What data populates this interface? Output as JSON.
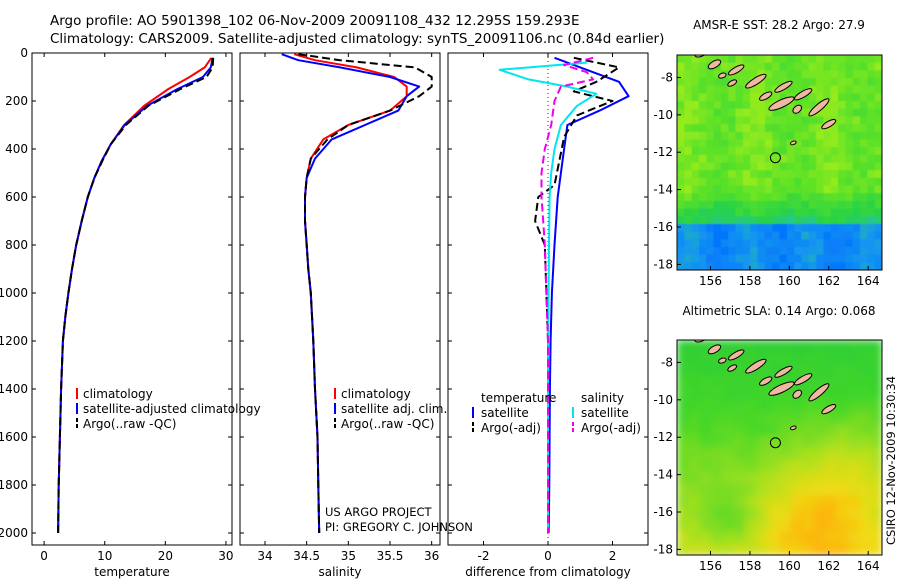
{
  "header": {
    "line1": "Argo profile: AO 5901398_102 06-Nov-2009 20091108_432 12.295S 159.293E",
    "line2": "Climatology: CARS2009. Satellite-adjusted climatology: synTS_20091106.nc (0.84d earlier)"
  },
  "credits": {
    "project": "US ARGO PROJECT",
    "pi": "PI: GREGORY C. JOHNSON",
    "stamp": "CSIRO 12-Nov-2009 10:30:34"
  },
  "colors": {
    "climatology": "#ff0000",
    "satellite": "#0000ff",
    "argo": "#000000",
    "salinity_satellite": "#00e5ee",
    "salinity_argo": "#ee00ee"
  },
  "chart_data": [
    {
      "type": "line",
      "xlabel": "temperature",
      "ylabel": "",
      "xlim": [
        -2,
        31
      ],
      "ylim": [
        2050,
        0
      ],
      "y_reversed": true,
      "xticks": [
        0,
        10,
        20,
        30
      ],
      "yticks": [
        0,
        200,
        400,
        600,
        800,
        1000,
        1200,
        1400,
        1600,
        1800,
        2000
      ],
      "legend": [
        "climatology",
        "satellite-adjusted climatology",
        "Argo(..raw -QC)"
      ],
      "series": [
        {
          "name": "climatology",
          "style": "solid",
          "color": "#ff0000",
          "x": [
            27.6,
            26.5,
            24.0,
            20.5,
            16.5,
            13.2,
            11.0,
            9.5,
            8.3,
            7.2,
            6.2,
            5.3,
            4.6,
            4.0,
            3.5,
            3.1,
            2.8,
            2.6,
            2.4,
            2.3
          ],
          "y": [
            20,
            60,
            100,
            150,
            220,
            300,
            380,
            450,
            520,
            600,
            700,
            800,
            900,
            1000,
            1100,
            1200,
            1400,
            1600,
            1800,
            2000
          ]
        },
        {
          "name": "satellite-adjusted climatology",
          "style": "solid",
          "color": "#0000ff",
          "x": [
            27.8,
            27.5,
            26.2,
            22.0,
            17.0,
            13.3,
            11.0,
            9.5,
            8.3,
            7.2,
            6.2,
            5.3,
            4.6,
            4.0,
            3.5,
            3.1,
            2.8,
            2.6,
            2.4,
            2.3
          ],
          "y": [
            20,
            60,
            100,
            150,
            220,
            300,
            380,
            450,
            520,
            600,
            700,
            800,
            900,
            1000,
            1100,
            1200,
            1400,
            1600,
            1800,
            2000
          ]
        },
        {
          "name": "Argo(..raw -QC)",
          "style": "dashed",
          "color": "#000000",
          "x": [
            27.9,
            27.8,
            26.8,
            22.5,
            17.2,
            13.5,
            11.0,
            9.6,
            8.3,
            7.2,
            6.2,
            5.3,
            4.6,
            4.0,
            3.5,
            3.1,
            2.8,
            2.6,
            2.4,
            2.3
          ],
          "y": [
            20,
            60,
            100,
            150,
            220,
            300,
            380,
            450,
            520,
            600,
            700,
            800,
            900,
            1000,
            1100,
            1200,
            1400,
            1600,
            1800,
            2000
          ]
        }
      ]
    },
    {
      "type": "line",
      "xlabel": "salinity",
      "ylabel": "",
      "xlim": [
        33.7,
        36.1
      ],
      "ylim": [
        2050,
        0
      ],
      "y_reversed": true,
      "xticks": [
        34,
        34.5,
        35,
        35.5,
        36
      ],
      "yticks": [],
      "legend": [
        "climatology",
        "satellite adj. clim.",
        "Argo(..raw -QC)"
      ],
      "series": [
        {
          "name": "climatology",
          "style": "solid",
          "color": "#ff0000",
          "x": [
            34.35,
            34.6,
            35.1,
            35.55,
            35.7,
            35.7,
            35.5,
            35.0,
            34.7,
            34.55,
            34.5,
            34.48,
            34.48,
            34.5,
            34.52,
            34.55,
            34.58,
            34.6,
            34.63,
            34.64,
            34.65
          ],
          "y": [
            5,
            30,
            60,
            100,
            140,
            180,
            240,
            300,
            360,
            440,
            520,
            600,
            700,
            800,
            900,
            1000,
            1200,
            1400,
            1600,
            1800,
            2000
          ]
        },
        {
          "name": "satellite adj. clim.",
          "style": "solid",
          "color": "#0000ff",
          "x": [
            34.2,
            34.4,
            34.9,
            35.5,
            35.85,
            35.7,
            35.6,
            35.2,
            34.8,
            34.6,
            34.5,
            34.48,
            34.48,
            34.5,
            34.52,
            34.55,
            34.58,
            34.6,
            34.63,
            34.64,
            34.65
          ],
          "y": [
            5,
            30,
            60,
            100,
            140,
            180,
            240,
            300,
            360,
            440,
            520,
            600,
            700,
            800,
            900,
            1000,
            1200,
            1400,
            1600,
            1800,
            2000
          ]
        },
        {
          "name": "Argo(..raw -QC)",
          "style": "dashed",
          "color": "#000000",
          "x": [
            34.4,
            34.9,
            35.8,
            36.0,
            36.0,
            35.85,
            35.5,
            35.0,
            34.75,
            34.55,
            34.5,
            34.48,
            34.48,
            34.5,
            34.52,
            34.55,
            34.58,
            34.6,
            34.63,
            34.64,
            34.65
          ],
          "y": [
            5,
            30,
            60,
            100,
            140,
            180,
            240,
            300,
            360,
            440,
            520,
            600,
            700,
            800,
            900,
            1000,
            1200,
            1400,
            1600,
            1800,
            2000
          ]
        }
      ]
    },
    {
      "type": "line",
      "xlabel": "difference from climatology",
      "ylabel": "",
      "xlim": [
        -3.1,
        3.1
      ],
      "ylim": [
        2050,
        0
      ],
      "y_reversed": true,
      "xticks": [
        -2,
        0,
        2
      ],
      "yticks": [],
      "legend_title": [
        "temperature",
        "salinity"
      ],
      "legend": [
        "satellite",
        "Argo(-adj)",
        "satellite",
        "Argo(-adj)"
      ],
      "series": [
        {
          "name": "satellite",
          "group": "temperature",
          "style": "solid",
          "color": "#0000ff",
          "x": [
            0.2,
            1.0,
            2.2,
            2.5,
            1.6,
            0.6,
            0.5,
            0.4,
            0.3,
            0.25,
            0.2,
            0.12,
            0.08,
            0.06,
            0.05,
            0.04,
            0.03,
            0.02
          ],
          "y": [
            20,
            60,
            120,
            180,
            240,
            300,
            400,
            500,
            600,
            700,
            800,
            1000,
            1200,
            1400,
            1600,
            1800,
            1900,
            2000
          ]
        },
        {
          "name": "Argo(-adj)",
          "group": "temperature",
          "style": "dashed",
          "color": "#000000",
          "x": [
            0.8,
            2.2,
            1.5,
            0.8,
            2.0,
            0.9,
            0.5,
            0.2,
            -0.3,
            -0.4,
            -0.1,
            -0.05,
            0.0,
            0.0,
            0.0,
            0.0,
            0.0,
            0.0
          ],
          "y": [
            20,
            60,
            120,
            160,
            200,
            260,
            350,
            550,
            600,
            700,
            800,
            1000,
            1200,
            1400,
            1600,
            1800,
            1900,
            2000
          ]
        },
        {
          "name": "satellite",
          "group": "salinity",
          "style": "solid",
          "color": "#00e5ee",
          "x": [
            1.2,
            -1.5,
            -0.6,
            0.6,
            1.5,
            0.9,
            0.4,
            0.2,
            0.1,
            0.05,
            0.03,
            0.02,
            0.01,
            0.0,
            0.0,
            0.0,
            0.0
          ],
          "y": [
            40,
            70,
            110,
            140,
            170,
            220,
            300,
            400,
            500,
            600,
            800,
            1000,
            1200,
            1400,
            1600,
            1800,
            2000
          ]
        },
        {
          "name": "Argo(-adj)",
          "group": "salinity",
          "style": "dashed",
          "color": "#ee00ee",
          "x": [
            1.4,
            0.5,
            1.2,
            1.4,
            0.4,
            0.2,
            0.1,
            -0.1,
            -0.2,
            -0.2,
            -0.15,
            -0.1,
            -0.05,
            0.0,
            0.0,
            0.0
          ],
          "y": [
            20,
            50,
            80,
            110,
            140,
            200,
            300,
            400,
            500,
            600,
            700,
            800,
            1000,
            1200,
            1600,
            2000
          ]
        }
      ]
    },
    {
      "type": "heatmap",
      "title": "AMSR-E SST: 28.2 Argo: 27.9",
      "xlim": [
        154.3,
        164.7
      ],
      "ylim": [
        -18.3,
        -6.8
      ],
      "xticks": [
        156,
        158,
        160,
        162,
        164
      ],
      "yticks": [
        -8,
        -10,
        -12,
        -14,
        -16,
        -18
      ],
      "marker": {
        "lon": 159.293,
        "lat": -12.295
      }
    },
    {
      "type": "heatmap",
      "title": "Altimetric SLA: 0.14 Argo: 0.068",
      "xlim": [
        154.3,
        164.7
      ],
      "ylim": [
        -18.3,
        -6.8
      ],
      "xticks": [
        156,
        158,
        160,
        162,
        164
      ],
      "yticks": [
        -8,
        -10,
        -12,
        -14,
        -16,
        -18
      ],
      "marker": {
        "lon": 159.293,
        "lat": -12.295
      }
    }
  ]
}
